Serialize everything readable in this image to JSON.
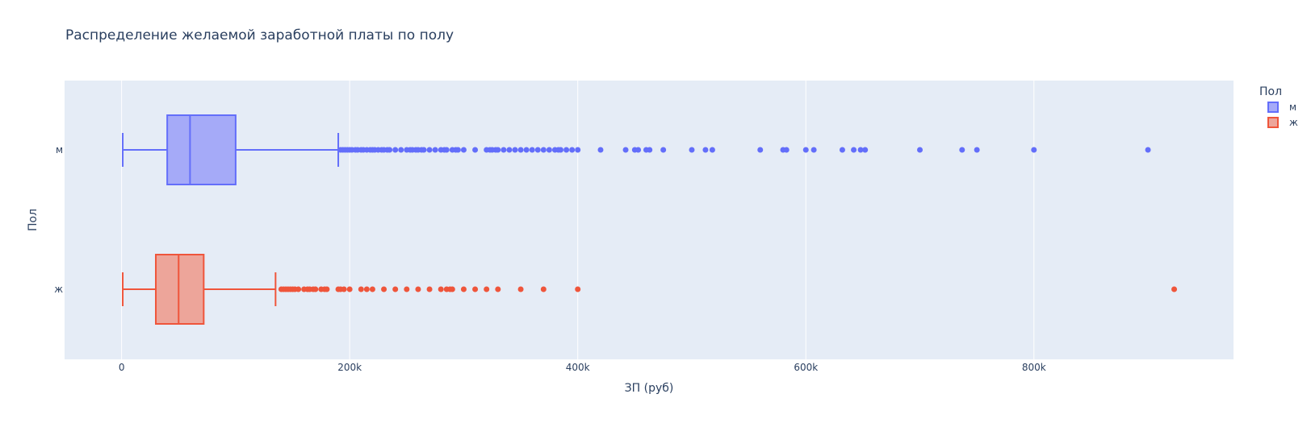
{
  "chart_data": {
    "type": "box",
    "orientation": "horizontal",
    "title": "Распределение желаемой заработной платы по полу",
    "xlabel": "ЗП (руб)",
    "ylabel": "Пол",
    "xlim": [
      -50000,
      975000
    ],
    "x_ticks": [
      0,
      200000,
      400000,
      600000,
      800000
    ],
    "x_tick_labels": [
      "0",
      "200k",
      "400k",
      "600k",
      "800k"
    ],
    "grid": true,
    "legend": {
      "title": "Пол",
      "placement": "top-right"
    },
    "categories": [
      "м",
      "ж"
    ],
    "series": [
      {
        "name": "м",
        "category": "м",
        "color": "#636efa",
        "fill": "#a5aaf8",
        "min": 1000,
        "q1": 40000,
        "median": 60000,
        "q3": 100000,
        "max": 190000,
        "outliers": [
          192000,
          194000,
          196000,
          198000,
          200000,
          202000,
          205000,
          207000,
          210000,
          212000,
          215000,
          218000,
          220000,
          222000,
          225000,
          228000,
          230000,
          233000,
          235000,
          240000,
          245000,
          250000,
          253000,
          255000,
          258000,
          260000,
          263000,
          265000,
          270000,
          275000,
          280000,
          283000,
          285000,
          290000,
          293000,
          295000,
          300000,
          310000,
          320000,
          323000,
          325000,
          328000,
          330000,
          335000,
          340000,
          345000,
          350000,
          355000,
          360000,
          365000,
          370000,
          375000,
          380000,
          383000,
          385000,
          390000,
          395000,
          400000,
          420000,
          442000,
          450000,
          453000,
          460000,
          463000,
          475000,
          500000,
          512000,
          518000,
          560000,
          580000,
          583000,
          600000,
          607000,
          632000,
          642000,
          648000,
          652000,
          700000,
          737000,
          750000,
          800000,
          900000
        ]
      },
      {
        "name": "ж",
        "category": "ж",
        "color": "#ef553b",
        "fill": "#eda59a",
        "min": 1000,
        "q1": 30000,
        "median": 50000,
        "q3": 72000,
        "max": 135000,
        "outliers": [
          140000,
          142000,
          144000,
          146000,
          148000,
          150000,
          152000,
          155000,
          160000,
          163000,
          165000,
          168000,
          170000,
          175000,
          178000,
          180000,
          190000,
          192000,
          195000,
          200000,
          210000,
          215000,
          220000,
          230000,
          240000,
          250000,
          260000,
          270000,
          280000,
          285000,
          288000,
          290000,
          300000,
          310000,
          320000,
          330000,
          350000,
          370000,
          400000,
          923000
        ]
      }
    ]
  }
}
